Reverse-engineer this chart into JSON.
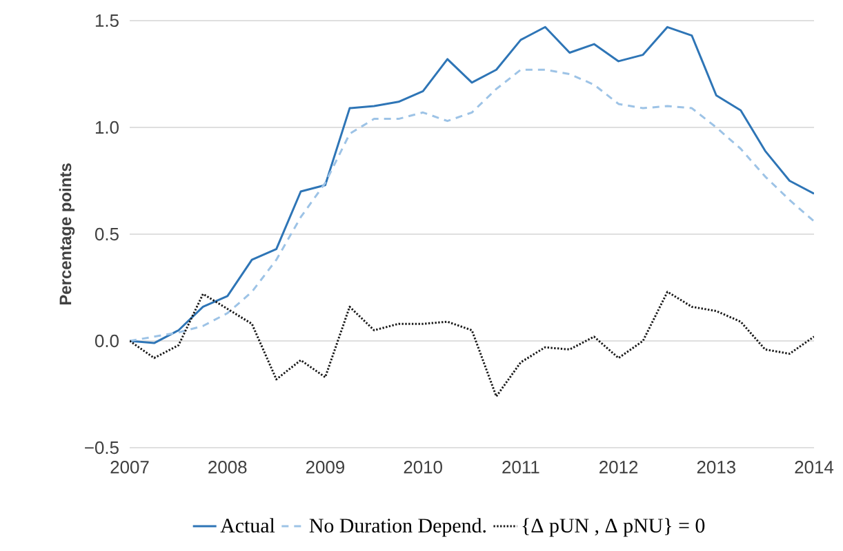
{
  "chart_data": {
    "type": "line",
    "ylabel": "Percentage points",
    "x": [
      2007,
      2007.25,
      2007.5,
      2007.75,
      2008,
      2008.25,
      2008.5,
      2008.75,
      2009,
      2009.25,
      2009.5,
      2009.75,
      2010,
      2010.25,
      2010.5,
      2010.75,
      2011,
      2011.25,
      2011.5,
      2011.75,
      2012,
      2012.25,
      2012.5,
      2012.75,
      2013,
      2013.25,
      2013.5,
      2013.75,
      2014
    ],
    "series": [
      {
        "name": "Actual",
        "color": "#2e75b6",
        "line_style": "solid",
        "values": [
          0.0,
          -0.01,
          0.05,
          0.16,
          0.21,
          0.38,
          0.43,
          0.7,
          0.73,
          1.09,
          1.1,
          1.12,
          1.17,
          1.32,
          1.21,
          1.27,
          1.41,
          1.47,
          1.35,
          1.39,
          1.31,
          1.34,
          1.47,
          1.43,
          1.15,
          1.08,
          0.89,
          0.75,
          0.69
        ]
      },
      {
        "name": "No Duration Depend.",
        "color": "#9dc3e6",
        "line_style": "dashed",
        "values": [
          0.0,
          0.02,
          0.04,
          0.07,
          0.13,
          0.23,
          0.38,
          0.58,
          0.74,
          0.97,
          1.04,
          1.04,
          1.07,
          1.03,
          1.07,
          1.18,
          1.27,
          1.27,
          1.25,
          1.2,
          1.11,
          1.09,
          1.1,
          1.09,
          1.0,
          0.9,
          0.77,
          0.66,
          0.56
        ]
      },
      {
        "name": "{Δ pUN , Δ pNU} = 0",
        "color": "#1a1a1a",
        "line_style": "dotted",
        "values": [
          0.0,
          -0.08,
          -0.02,
          0.22,
          0.15,
          0.08,
          -0.18,
          -0.09,
          -0.17,
          0.16,
          0.05,
          0.08,
          0.08,
          0.09,
          0.05,
          -0.26,
          -0.1,
          -0.03,
          -0.04,
          0.02,
          -0.08,
          0.0,
          0.23,
          0.16,
          0.14,
          0.09,
          -0.04,
          -0.06,
          0.02
        ]
      }
    ],
    "xlim": [
      2007,
      2014
    ],
    "ylim": [
      -0.5,
      1.5
    ],
    "xticks": [
      2007,
      2008,
      2009,
      2010,
      2011,
      2012,
      2013,
      2014
    ],
    "yticks": [
      {
        "value": -0.5,
        "label": "−0.5"
      },
      {
        "value": 0,
        "label": "0.0"
      },
      {
        "value": 0.5,
        "label": "0.5"
      },
      {
        "value": 1,
        "label": "1.0"
      },
      {
        "value": 1.5,
        "label": "1.5"
      }
    ],
    "grid": "y",
    "legend": "bottom"
  }
}
